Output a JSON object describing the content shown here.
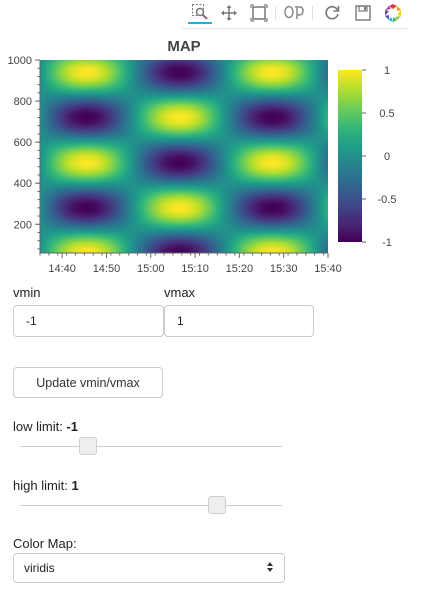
{
  "toolbar": {
    "tools": [
      {
        "name": "box-zoom-icon",
        "active": true
      },
      {
        "name": "pan-icon",
        "active": false
      },
      {
        "name": "box-select-icon",
        "active": false
      },
      {
        "name": "lasso-icon",
        "active": false
      },
      {
        "name": "reset-icon",
        "active": false
      },
      {
        "name": "save-icon",
        "active": false
      },
      {
        "name": "bokeh-logo-icon",
        "active": false
      }
    ]
  },
  "chart_data": {
    "type": "heatmap",
    "title": "MAP",
    "xlabel": "",
    "ylabel": "",
    "x_ticks": [
      "14:40",
      "14:50",
      "15:00",
      "15:10",
      "15:20",
      "15:30",
      "15:40"
    ],
    "x_range": [
      "14:35",
      "15:40"
    ],
    "y_ticks": [
      200,
      400,
      600,
      800,
      1000
    ],
    "y_range": [
      60,
      1000
    ],
    "z_range": [
      -1,
      1
    ],
    "colormap": "viridis",
    "colorbar_ticks": [
      1,
      0.5,
      0,
      -0.5,
      -1
    ],
    "colorbar_tick_labels": [
      "1",
      "0.5",
      "0",
      "-0.5",
      "-1"
    ],
    "pattern": "z = sin(2π·(t − 14:35)/42 min) · cos(2π·(y − 60)/440)",
    "x_period_minutes": 42,
    "y_period": 440
  },
  "controls": {
    "vmin_label": "vmin",
    "vmax_label": "vmax",
    "vmin_value": "-1",
    "vmax_value": "1",
    "update_button": "Update vmin/vmax",
    "low_limit_label": "low limit: ",
    "low_limit_value": "-1",
    "low_slider_fraction": 0.26,
    "high_limit_label": "high limit: ",
    "high_limit_value": "1",
    "high_slider_fraction": 0.75,
    "colormap_label": "Color Map:",
    "colormap_value": "viridis"
  }
}
